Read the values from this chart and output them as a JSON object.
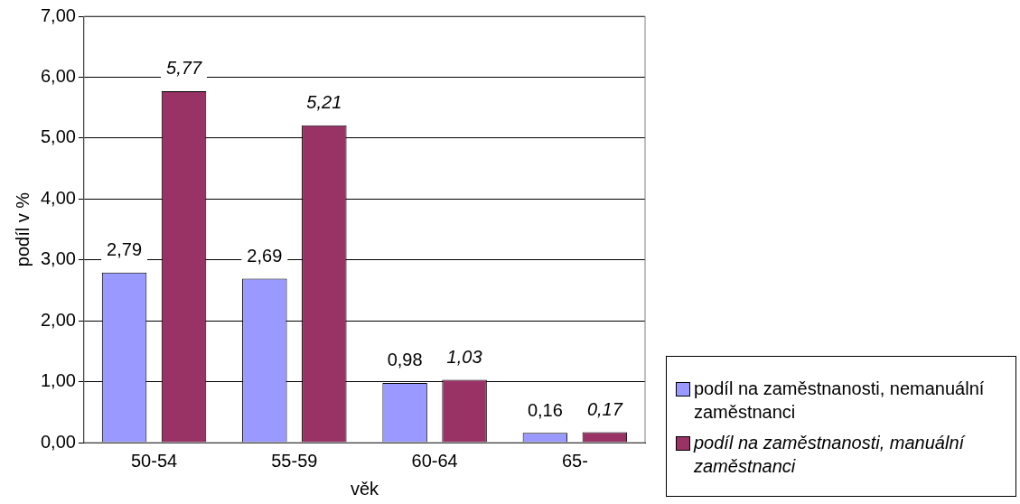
{
  "chart_data": {
    "type": "bar",
    "xlabel": "věk",
    "ylabel": "podíl v %",
    "categories": [
      "50-54",
      "55-59",
      "60-64",
      "65-"
    ],
    "series": [
      {
        "name": "podíl na zaměstnanosti, nemanuální zaměstnanci",
        "color": "#9999ff",
        "values": [
          2.79,
          2.69,
          0.98,
          0.16
        ],
        "value_labels": [
          "2,79",
          "2,69",
          "0,98",
          "0,16"
        ]
      },
      {
        "name": "podíl na zaměstnanosti, manuální zaměstnanci",
        "color": "#993366",
        "values": [
          5.77,
          5.21,
          1.03,
          0.17
        ],
        "value_labels": [
          "5,77",
          "5,21",
          "1,03",
          "0,17"
        ]
      }
    ],
    "ylim": [
      0,
      7
    ],
    "yticks": [
      {
        "value": 0,
        "label": "0,00"
      },
      {
        "value": 1,
        "label": "1,00"
      },
      {
        "value": 2,
        "label": "2,00"
      },
      {
        "value": 3,
        "label": "3,00"
      },
      {
        "value": 4,
        "label": "4,00"
      },
      {
        "value": 5,
        "label": "5,00"
      },
      {
        "value": 6,
        "label": "6,00"
      },
      {
        "value": 7,
        "label": "7,00"
      }
    ],
    "grid": "y",
    "legend": "bottom right"
  }
}
